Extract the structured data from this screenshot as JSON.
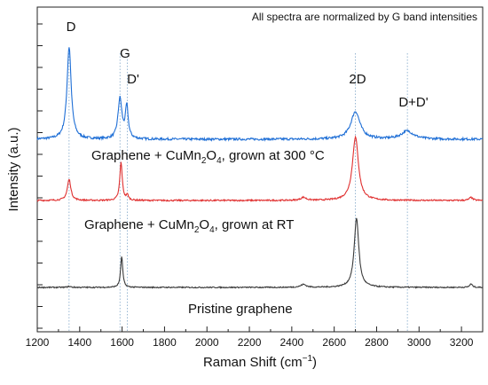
{
  "chart_data": {
    "type": "line",
    "xlabel_main": "Raman Shift (cm",
    "xlabel_sup": "−1",
    "xlabel_tail": ")",
    "ylabel": "Intensity (a.u.)",
    "xlim": [
      1200,
      3300
    ],
    "x_ticks": [
      1200,
      1400,
      1600,
      1800,
      2000,
      2200,
      2400,
      2600,
      2800,
      3000,
      3200
    ],
    "grid": false,
    "annotations": {
      "note": "All spectra are normalized by G band intensities",
      "peaks": [
        {
          "label": "D",
          "x": 1350
        },
        {
          "label": "G",
          "x": 1590
        },
        {
          "label": "D'",
          "x": 1625
        },
        {
          "label": "2D",
          "x": 2700
        },
        {
          "label": "D+D'",
          "x": 2945
        }
      ]
    },
    "series": [
      {
        "label_parts": [
          "Graphene + CuMn",
          "2",
          "O",
          "4",
          ", grown at 300 °C"
        ],
        "color": "#1f6fd6",
        "peaks": [
          {
            "x": 1350,
            "height": 1.6,
            "width": 12
          },
          {
            "x": 1590,
            "height": 0.7,
            "width": 11
          },
          {
            "x": 1622,
            "height": 0.55,
            "width": 8
          },
          {
            "x": 2700,
            "height": 0.48,
            "width": 26
          },
          {
            "x": 2945,
            "height": 0.14,
            "width": 35
          }
        ],
        "noise": 0.02
      },
      {
        "label_parts": [
          "Graphene + CuMn",
          "2",
          "O",
          "4",
          ", grown at RT"
        ],
        "color": "#e03030",
        "peaks": [
          {
            "x": 1350,
            "height": 0.35,
            "width": 10
          },
          {
            "x": 1595,
            "height": 0.63,
            "width": 7
          },
          {
            "x": 1625,
            "height": 0.08,
            "width": 6
          },
          {
            "x": 2455,
            "height": 0.05,
            "width": 15
          },
          {
            "x": 2700,
            "height": 1.05,
            "width": 17
          },
          {
            "x": 3245,
            "height": 0.05,
            "width": 10
          }
        ],
        "noise": 0.012
      },
      {
        "label_parts": [
          "Pristine graphene"
        ],
        "color": "#3a3a3a",
        "peaks": [
          {
            "x": 1350,
            "height": 0.02,
            "width": 10
          },
          {
            "x": 1598,
            "height": 0.64,
            "width": 6
          },
          {
            "x": 2455,
            "height": 0.06,
            "width": 15
          },
          {
            "x": 2705,
            "height": 1.42,
            "width": 13
          },
          {
            "x": 3245,
            "height": 0.07,
            "width": 8
          }
        ],
        "noise": 0.012
      }
    ]
  }
}
